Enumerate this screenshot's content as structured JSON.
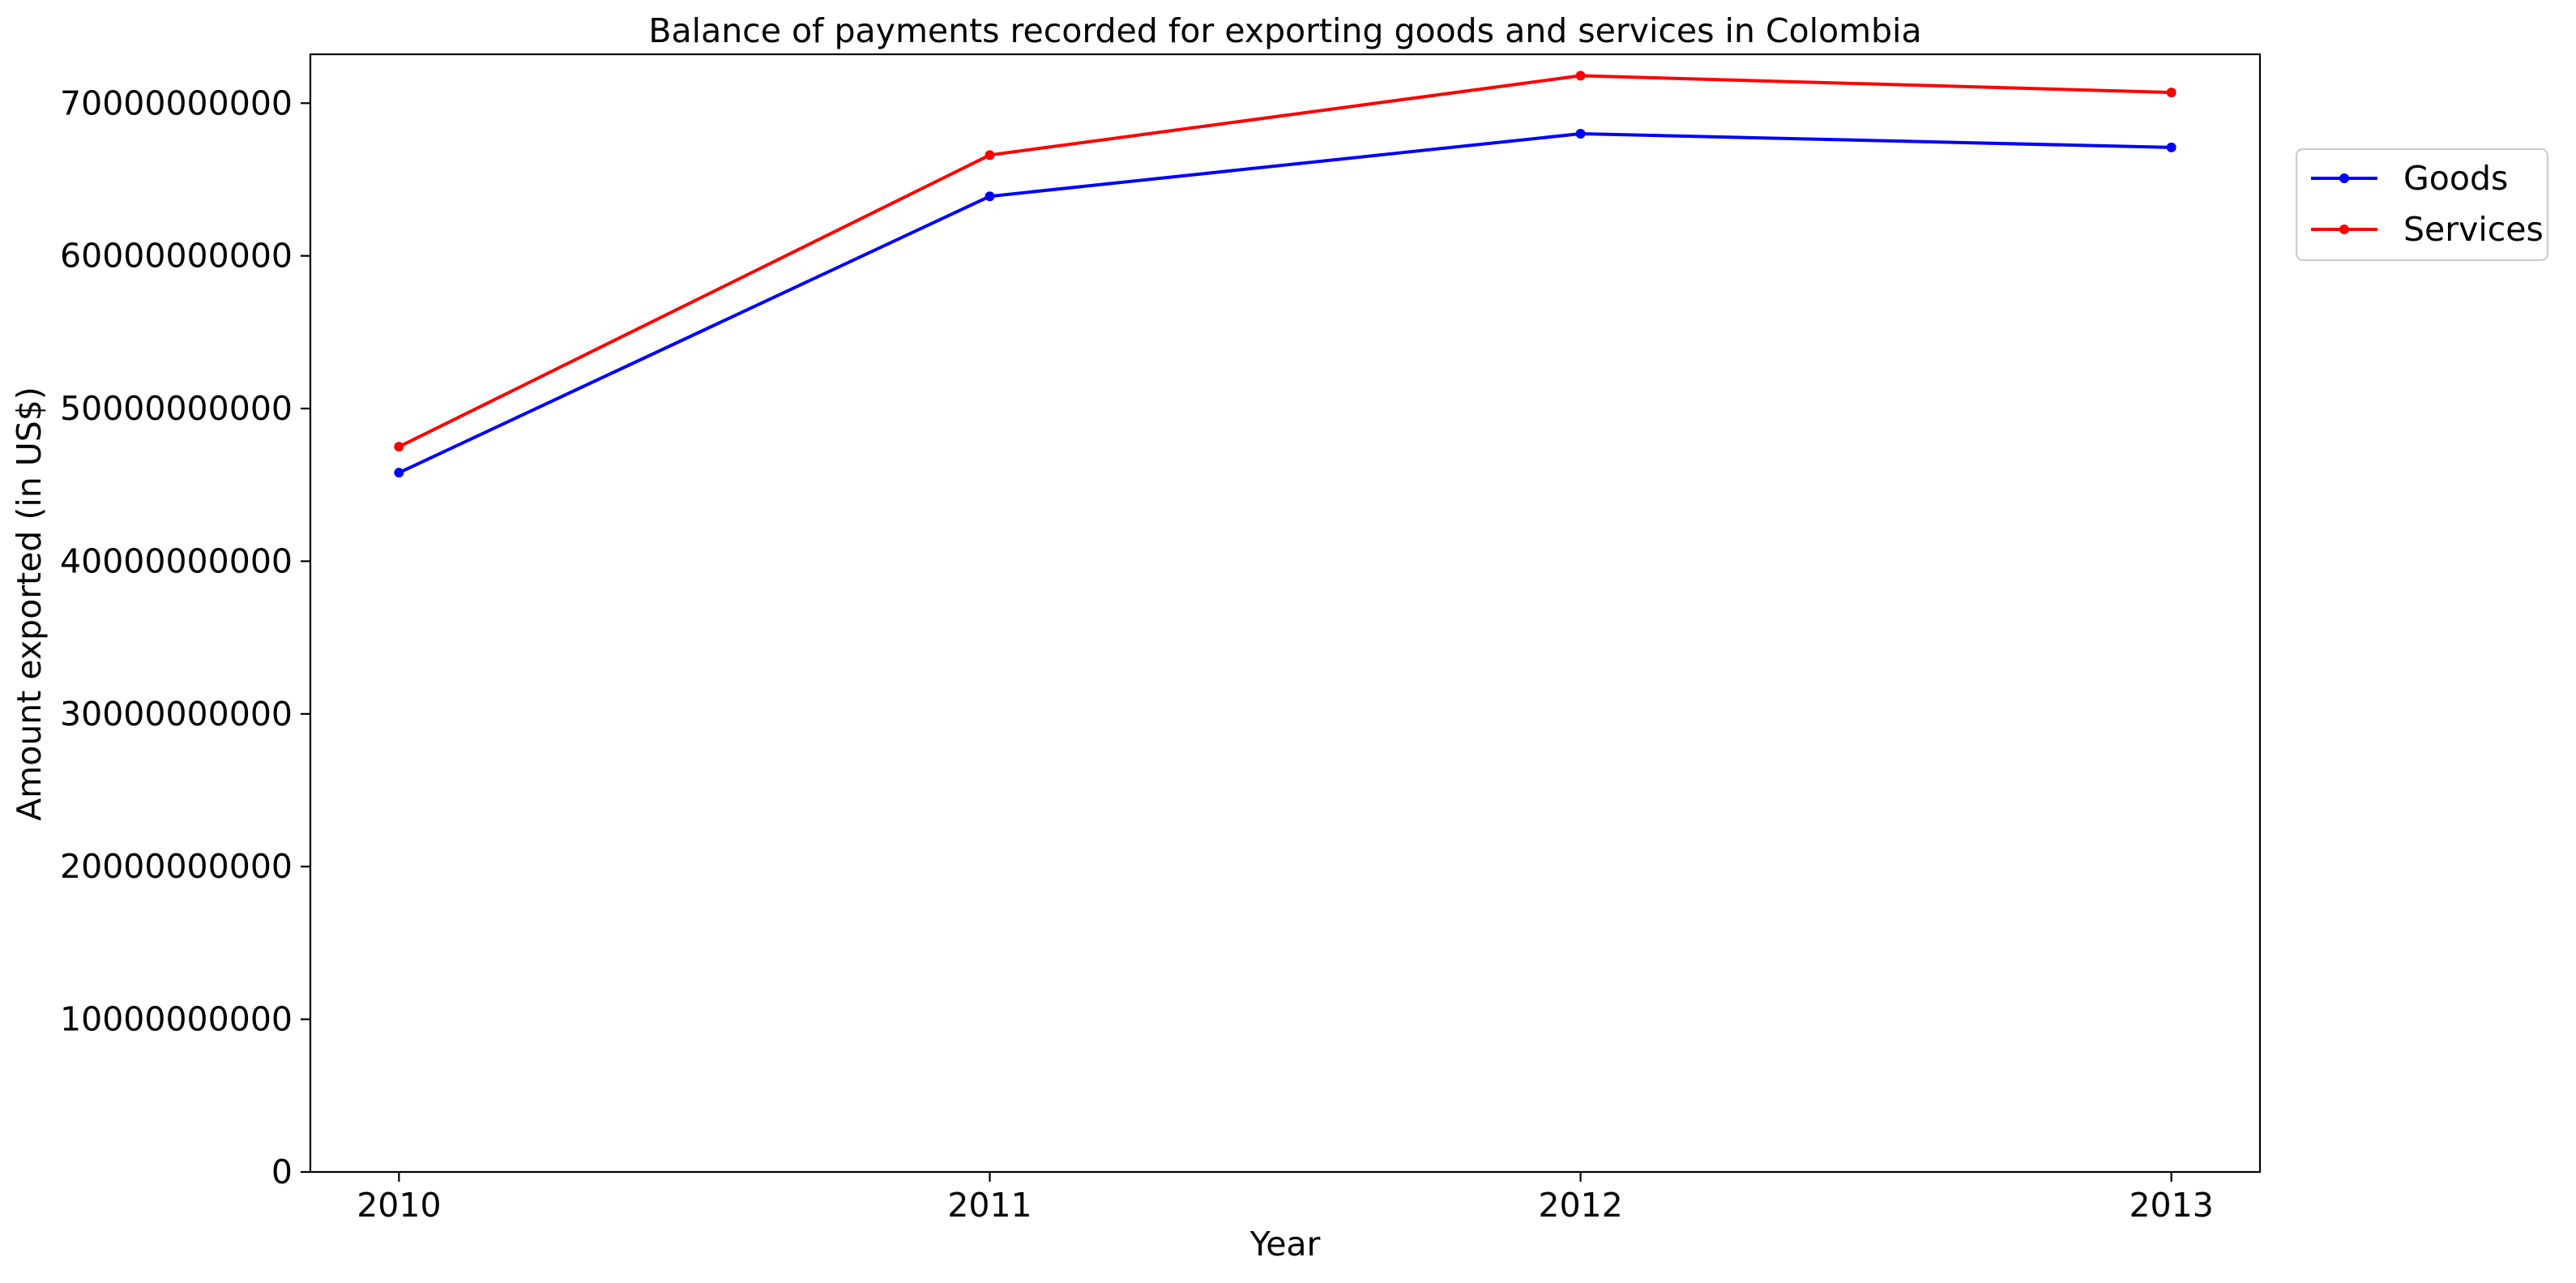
{
  "chart_data": {
    "type": "line",
    "title": "Balance of payments recorded for exporting goods and services in Colombia",
    "xlabel": "Year",
    "ylabel": "Amount exported (in US$)",
    "x": [
      2010,
      2011,
      2012,
      2013
    ],
    "x_tick_labels": [
      "2010",
      "2011",
      "2012",
      "2013"
    ],
    "xlim": [
      2009.85,
      2013.15
    ],
    "ylim": [
      0,
      73200000000
    ],
    "y_ticks": [
      0,
      10000000000,
      20000000000,
      30000000000,
      40000000000,
      50000000000,
      60000000000,
      70000000000
    ],
    "y_tick_labels": [
      "0",
      "10000000000",
      "20000000000",
      "30000000000",
      "40000000000",
      "50000000000",
      "60000000000",
      "70000000000"
    ],
    "grid": false,
    "legend_position": "right, outside top",
    "series": [
      {
        "name": "Goods",
        "color": "#0000ff",
        "marker": "circle",
        "values": [
          45800000000,
          63900000000,
          68000000000,
          67100000000
        ]
      },
      {
        "name": "Services",
        "color": "#ff0000",
        "marker": "circle",
        "values": [
          47500000000,
          66600000000,
          71800000000,
          70700000000
        ]
      }
    ]
  }
}
